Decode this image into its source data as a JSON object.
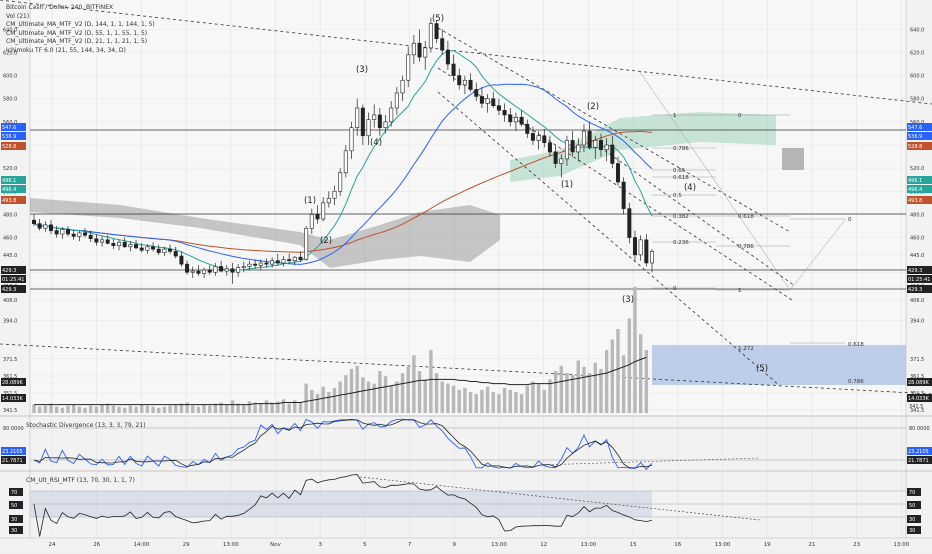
{
  "legend": {
    "symbol": "Bitcoin Cash / Dollar, 240, BITFINEX",
    "vol": "Vol (21)",
    "ind1": "CM_Ultimate_MA_MTF_V2 (D, 144, 1, 1, 144, 1, 5)",
    "ind2": "CM_Ultimate_MA_MTF_V2 (D, 55, 1, 1, 55, 1, 5)",
    "ind3": "CM_Ultimate_MA_MTF_V2 (D, 21, 1, 1, 21, 1, 5)",
    "ind4": "Ichimoku TF 6.0 (21, 55, 144, 34, 34, D)"
  },
  "stoch_title": "Stochastic Divergence (13, 3, 3, 79, 21)",
  "rsi_title": "CM_Ult_RSI_MTF (13, 70, 30, 1, 1, 7)",
  "price_ticks": [
    "640.0",
    "620.0",
    "600.0",
    "580.0",
    "560.0",
    "540.0",
    "520.0",
    "500.0",
    "480.0",
    "460.0",
    "445.0",
    "430.0",
    "418.0",
    "406.0",
    "394.0",
    "371.5",
    "361.5",
    "351.5",
    "341.5"
  ],
  "price_tags": [
    {
      "value": "547.6",
      "color": "#2962ff"
    },
    {
      "value": "536.9",
      "color": "#2962ff"
    },
    {
      "value": "528.8",
      "color": "#c0522d"
    },
    {
      "value": "496.1",
      "color": "#26a69a"
    },
    {
      "value": "496.4",
      "color": "#26a69a"
    },
    {
      "value": "493.8",
      "color": "#c0522d"
    },
    {
      "value": "429.3",
      "color": "#222222"
    },
    {
      "value": "01:25:41",
      "color": "#222222"
    },
    {
      "value": "429.3",
      "color": "#222222"
    },
    {
      "value": "28.089K",
      "color": "#222222"
    },
    {
      "value": "14.033K",
      "color": "#222222"
    }
  ],
  "stoch_ticks": [
    "80.0000",
    "20.0000"
  ],
  "stoch_tags": [
    {
      "value": "23.2105",
      "color": "#2962ff"
    },
    {
      "value": "21.7871",
      "color": "#222222"
    }
  ],
  "rsi_ticks": [
    "70",
    "50",
    "30"
  ],
  "rsi_tags": [
    {
      "value": "70",
      "color": "#222"
    },
    {
      "value": "50",
      "color": "#222"
    },
    {
      "value": "30",
      "color": "#222"
    },
    {
      "value": "30",
      "color": "#222"
    }
  ],
  "time_ticks": [
    "24",
    "26",
    "14:00",
    "29",
    "13:00",
    "Nov",
    "3",
    "5",
    "7",
    "9",
    "13:00",
    "12",
    "13:00",
    "15",
    "16",
    "13:00",
    "19",
    "21",
    "23",
    "13:00"
  ],
  "elliott": [
    "(5)",
    "(3)",
    "(4)",
    "(1)",
    "(2)",
    "(2)",
    "(1)",
    "(4)",
    "(3)",
    "(5)"
  ],
  "fib_main": [
    "1",
    "0.786",
    "0.65",
    "0.618",
    "0.5",
    "0.382",
    "0.236",
    "0"
  ],
  "fib_right": [
    "0",
    "0.618",
    "0.786",
    "1"
  ],
  "fib_ext": [
    "1.272",
    "0.618",
    "0.786"
  ],
  "chart_data": {
    "type": "candlestick",
    "title": "Bitcoin Cash / Dollar, 240, BITFINEX",
    "xlabel": "",
    "ylabel": "",
    "ylim": [
      341.5,
      655
    ],
    "grid": true,
    "colors": {
      "up": "#222222",
      "down": "#222222",
      "ma144": "#c0522d",
      "ma55": "#2962ff",
      "ma21": "#26a69a",
      "cloud": "#888888",
      "cloud_green": "#a5d6c0",
      "target_box": "#a9bfe6"
    },
    "ohlc": [
      [
        475,
        480,
        470,
        472
      ],
      [
        472,
        476,
        466,
        468
      ],
      [
        468,
        474,
        465,
        471
      ],
      [
        471,
        475,
        463,
        466
      ],
      [
        466,
        470,
        460,
        463
      ],
      [
        463,
        469,
        459,
        467
      ],
      [
        467,
        470,
        461,
        463
      ],
      [
        463,
        467,
        458,
        461
      ],
      [
        461,
        466,
        457,
        464
      ],
      [
        464,
        468,
        460,
        462
      ],
      [
        462,
        466,
        456,
        459
      ],
      [
        459,
        463,
        453,
        456
      ],
      [
        456,
        461,
        452,
        458
      ],
      [
        458,
        462,
        454,
        455
      ],
      [
        455,
        459,
        450,
        453
      ],
      [
        453,
        458,
        449,
        456
      ],
      [
        456,
        460,
        451,
        452
      ],
      [
        452,
        457,
        448,
        454
      ],
      [
        454,
        458,
        450,
        451
      ],
      [
        451,
        455,
        447,
        449
      ],
      [
        449,
        454,
        446,
        452
      ],
      [
        452,
        456,
        448,
        450
      ],
      [
        450,
        454,
        445,
        447
      ],
      [
        447,
        452,
        444,
        450
      ],
      [
        450,
        454,
        446,
        448
      ],
      [
        448,
        452,
        442,
        444
      ],
      [
        444,
        448,
        435,
        437
      ],
      [
        437,
        440,
        428,
        430
      ],
      [
        430,
        435,
        425,
        431
      ],
      [
        431,
        436,
        427,
        429
      ],
      [
        429,
        434,
        425,
        432
      ],
      [
        432,
        436,
        428,
        430
      ],
      [
        430,
        438,
        427,
        435
      ],
      [
        435,
        440,
        430,
        431
      ],
      [
        431,
        436,
        427,
        433
      ],
      [
        433,
        438,
        420,
        430
      ],
      [
        430,
        437,
        426,
        434
      ],
      [
        434,
        439,
        430,
        435
      ],
      [
        435,
        440,
        432,
        437
      ],
      [
        437,
        441,
        433,
        436
      ],
      [
        436,
        441,
        432,
        438
      ],
      [
        438,
        442,
        434,
        437
      ],
      [
        437,
        443,
        434,
        440
      ],
      [
        440,
        446,
        436,
        438
      ],
      [
        438,
        444,
        435,
        441
      ],
      [
        441,
        446,
        437,
        440
      ],
      [
        440,
        444,
        436,
        443
      ],
      [
        443,
        448,
        439,
        441
      ],
      [
        441,
        470,
        440,
        468
      ],
      [
        468,
        485,
        463,
        480
      ],
      [
        480,
        488,
        472,
        476
      ],
      [
        476,
        495,
        474,
        490
      ],
      [
        490,
        500,
        486,
        494
      ],
      [
        494,
        505,
        488,
        500
      ],
      [
        500,
        520,
        496,
        516
      ],
      [
        516,
        540,
        512,
        535
      ],
      [
        535,
        560,
        528,
        555
      ],
      [
        555,
        580,
        548,
        572
      ],
      [
        572,
        575,
        540,
        548
      ],
      [
        548,
        568,
        540,
        562
      ],
      [
        562,
        575,
        555,
        566
      ],
      [
        566,
        572,
        548,
        555
      ],
      [
        555,
        566,
        550,
        560
      ],
      [
        560,
        578,
        556,
        572
      ],
      [
        572,
        590,
        566,
        585
      ],
      [
        585,
        600,
        578,
        596
      ],
      [
        596,
        625,
        590,
        618
      ],
      [
        618,
        635,
        610,
        628
      ],
      [
        628,
        640,
        612,
        616
      ],
      [
        616,
        630,
        605,
        624
      ],
      [
        624,
        650,
        620,
        645
      ],
      [
        645,
        648,
        628,
        632
      ],
      [
        632,
        640,
        618,
        622
      ],
      [
        622,
        630,
        605,
        610
      ],
      [
        610,
        618,
        595,
        600
      ],
      [
        600,
        606,
        588,
        592
      ],
      [
        592,
        600,
        584,
        596
      ],
      [
        596,
        602,
        586,
        588
      ],
      [
        588,
        594,
        578,
        582
      ],
      [
        582,
        590,
        572,
        576
      ],
      [
        576,
        584,
        568,
        580
      ],
      [
        580,
        586,
        572,
        574
      ],
      [
        574,
        580,
        566,
        570
      ],
      [
        570,
        576,
        560,
        566
      ],
      [
        566,
        572,
        556,
        560
      ],
      [
        560,
        568,
        552,
        564
      ],
      [
        564,
        570,
        556,
        558
      ],
      [
        558,
        562,
        546,
        550
      ],
      [
        550,
        556,
        540,
        544
      ],
      [
        544,
        552,
        536,
        548
      ],
      [
        548,
        554,
        538,
        542
      ],
      [
        542,
        548,
        530,
        534
      ],
      [
        534,
        540,
        520,
        524
      ],
      [
        524,
        532,
        512,
        528
      ],
      [
        528,
        548,
        522,
        544
      ],
      [
        544,
        552,
        530,
        534
      ],
      [
        534,
        546,
        526,
        540
      ],
      [
        540,
        558,
        534,
        552
      ],
      [
        552,
        560,
        536,
        538
      ],
      [
        538,
        548,
        528,
        544
      ],
      [
        544,
        550,
        530,
        536
      ],
      [
        536,
        546,
        526,
        540
      ],
      [
        540,
        548,
        520,
        524
      ],
      [
        524,
        530,
        505,
        508
      ],
      [
        508,
        512,
        480,
        485
      ],
      [
        485,
        490,
        455,
        460
      ],
      [
        460,
        466,
        440,
        445
      ],
      [
        445,
        462,
        440,
        458
      ],
      [
        458,
        463,
        435,
        438
      ],
      [
        438,
        450,
        430,
        448
      ]
    ],
    "volume": [
      8,
      6,
      7,
      9,
      6,
      5,
      7,
      8,
      6,
      5,
      7,
      6,
      8,
      9,
      7,
      6,
      5,
      7,
      6,
      8,
      7,
      6,
      5,
      6,
      7,
      8,
      9,
      10,
      7,
      6,
      8,
      7,
      9,
      10,
      8,
      12,
      9,
      8,
      11,
      10,
      9,
      12,
      10,
      11,
      13,
      9,
      12,
      10,
      28,
      22,
      18,
      25,
      20,
      24,
      30,
      36,
      42,
      45,
      34,
      30,
      28,
      40,
      35,
      26,
      30,
      38,
      44,
      55,
      40,
      32,
      60,
      38,
      30,
      28,
      26,
      22,
      24,
      20,
      18,
      22,
      25,
      20,
      18,
      24,
      22,
      20,
      18,
      26,
      30,
      28,
      22,
      32,
      40,
      45,
      38,
      36,
      50,
      44,
      38,
      48,
      42,
      60,
      70,
      80,
      55,
      90,
      120,
      75,
      60
    ],
    "volume_ma": [
      8,
      8,
      8,
      8,
      8,
      8,
      8,
      8,
      8,
      8,
      8,
      8,
      8,
      8,
      8,
      8,
      8,
      8,
      8,
      8,
      8,
      8,
      8,
      8,
      8,
      8,
      8,
      8,
      8,
      8,
      8,
      8,
      8,
      8,
      8,
      8,
      8,
      8,
      8,
      9,
      9,
      9,
      9,
      9,
      10,
      10,
      10,
      10,
      11,
      12,
      13,
      14,
      15,
      16,
      17,
      18,
      19,
      20,
      21,
      22,
      23,
      24,
      25,
      26,
      27,
      28,
      29,
      30,
      31,
      31,
      32,
      32,
      32,
      32,
      32,
      31,
      31,
      30,
      30,
      29,
      29,
      28,
      28,
      28,
      27,
      27,
      27,
      27,
      28,
      28,
      28,
      28,
      29,
      30,
      31,
      32,
      33,
      34,
      35,
      36,
      37,
      38,
      40,
      42,
      44,
      46,
      49,
      51,
      53
    ]
  }
}
